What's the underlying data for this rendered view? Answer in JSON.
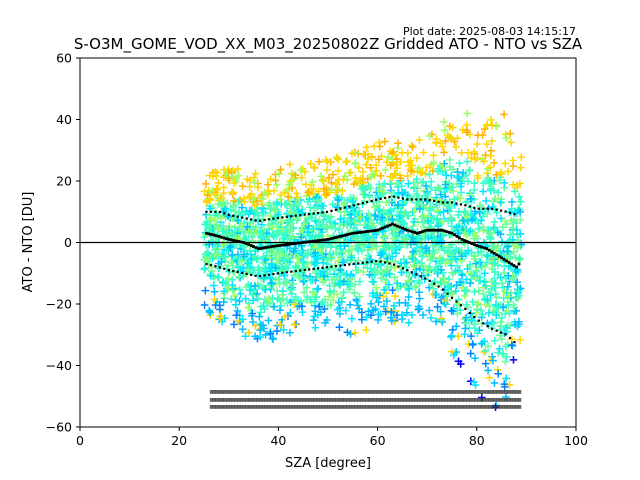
{
  "chart_data": {
    "type": "scatter",
    "title": "S-O3M_GOME_VOD_XX_M03_20250802Z Gridded ATO - NTO vs SZA",
    "plot_date": "Plot date: 2025-08-03 14:15:17",
    "xlabel": "SZA [degree]",
    "ylabel": "ATO - NTO [DU]",
    "xlim": [
      0,
      100
    ],
    "ylim": [
      -60,
      60
    ],
    "xticks": [
      "0",
      "20",
      "40",
      "60",
      "80",
      "100"
    ],
    "yticks": [
      "60",
      "40",
      "20",
      "0",
      "−20",
      "−40",
      "−60"
    ],
    "grid": false,
    "reference_line_y": 0,
    "colors": {
      "palette": [
        "#0000ff",
        "#0080ff",
        "#00bfff",
        "#00e5ff",
        "#33ffcc",
        "#66ff99",
        "#99ff66",
        "#ccff33",
        "#ffd700",
        "#ffb000"
      ],
      "median": "#000000",
      "percentile": "#000000"
    },
    "scatter_envelope": {
      "sza": [
        25,
        27,
        30,
        33,
        36,
        40,
        45,
        50,
        55,
        60,
        62,
        65,
        70,
        73,
        75,
        78,
        80,
        83,
        86,
        88
      ],
      "upper": [
        20,
        23,
        24,
        24,
        22,
        26,
        25,
        27,
        29,
        33,
        33,
        32,
        34,
        38,
        45,
        44,
        38,
        40,
        42,
        28
      ],
      "lower": [
        -22,
        -27,
        -28,
        -30,
        -34,
        -31,
        -29,
        -31,
        -30,
        -28,
        -25,
        -27,
        -25,
        -28,
        -36,
        -42,
        -50,
        -53,
        -58,
        -32
      ]
    },
    "median": {
      "sza": [
        25.5,
        28,
        30,
        33,
        36,
        40,
        45,
        50,
        55,
        60,
        63,
        66,
        68,
        70,
        73,
        75,
        77,
        80,
        82,
        84,
        86,
        88,
        89
      ],
      "y": [
        3,
        2,
        1,
        0,
        -2,
        -1,
        0,
        1,
        3,
        4,
        6,
        4,
        3,
        4,
        4,
        3,
        1,
        -1,
        -2,
        -4,
        -6,
        -8,
        -6
      ]
    },
    "p_high": {
      "sza": [
        25.5,
        28,
        30,
        33,
        36,
        40,
        45,
        50,
        55,
        60,
        63,
        66,
        70,
        73,
        75,
        78,
        80,
        83,
        86,
        88
      ],
      "y": [
        10,
        10,
        9,
        8,
        7,
        8,
        9,
        10,
        12,
        14,
        15,
        14,
        14,
        13,
        13,
        12,
        11,
        11,
        10,
        9
      ]
    },
    "p_low": {
      "sza": [
        25.5,
        28,
        30,
        33,
        36,
        40,
        45,
        50,
        55,
        60,
        63,
        66,
        70,
        73,
        75,
        78,
        80,
        83,
        86,
        88
      ],
      "y": [
        -7,
        -8,
        -9,
        -10,
        -11,
        -10,
        -9,
        -8,
        -7,
        -6,
        -7,
        -9,
        -12,
        -15,
        -18,
        -22,
        -25,
        -28,
        -30,
        -33
      ]
    }
  }
}
